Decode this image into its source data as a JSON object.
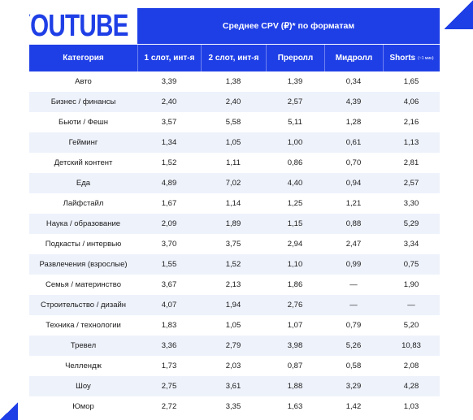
{
  "logo": "YOUTUBE",
  "banner_title": "Среднее CPV (₽)* по форматам",
  "headers": {
    "category": "Категория",
    "c1": "1 слот, инт-я",
    "c2": "2 слот, инт-я",
    "c3": "Преролл",
    "c4": "Мидролл",
    "c5": "Shorts",
    "c5_note": "(~1 мин)"
  },
  "colors": {
    "accent": "#1f3fe6",
    "stripe": "#eef2fb"
  },
  "chart_data": {
    "type": "table",
    "title": "Среднее CPV (₽)* по форматам",
    "columns": [
      "Категория",
      "1 слот, инт-я",
      "2 слот, инт-я",
      "Преролл",
      "Мидролл",
      "Shorts"
    ],
    "rows": [
      [
        "Авто",
        "3,39",
        "1,38",
        "1,39",
        "0,34",
        "1,65"
      ],
      [
        "Бизнес / финансы",
        "2,40",
        "2,40",
        "2,57",
        "4,39",
        "4,06"
      ],
      [
        "Бьюти / Фешн",
        "3,57",
        "5,58",
        "5,11",
        "1,28",
        "2,16"
      ],
      [
        "Гейминг",
        "1,34",
        "1,05",
        "1,00",
        "0,61",
        "1,13"
      ],
      [
        "Детский контент",
        "1,52",
        "1,11",
        "0,86",
        "0,70",
        "2,81"
      ],
      [
        "Еда",
        "4,89",
        "7,02",
        "4,40",
        "0,94",
        "2,57"
      ],
      [
        "Лайфстайл",
        "1,67",
        "1,14",
        "1,25",
        "1,21",
        "3,30"
      ],
      [
        "Наука / образование",
        "2,09",
        "1,89",
        "1,15",
        "0,88",
        "5,29"
      ],
      [
        "Подкасты / интервью",
        "3,70",
        "3,75",
        "2,94",
        "2,47",
        "3,34"
      ],
      [
        "Развлечения (взрослые)",
        "1,55",
        "1,52",
        "1,10",
        "0,99",
        "0,75"
      ],
      [
        "Семья / материнство",
        "3,67",
        "2,13",
        "1,86",
        "—",
        "1,90"
      ],
      [
        "Строительство / дизайн",
        "4,07",
        "1,94",
        "2,76",
        "—",
        "—"
      ],
      [
        "Техника / технологии",
        "1,83",
        "1,05",
        "1,07",
        "0,79",
        "5,20"
      ],
      [
        "Тревел",
        "3,36",
        "2,79",
        "3,98",
        "5,26",
        "10,83"
      ],
      [
        "Челлендж",
        "1,73",
        "2,03",
        "0,87",
        "0,58",
        "2,08"
      ],
      [
        "Шоу",
        "2,75",
        "3,61",
        "1,88",
        "3,29",
        "4,28"
      ],
      [
        "Юмор",
        "2,72",
        "3,35",
        "1,63",
        "1,42",
        "1,03"
      ]
    ]
  }
}
